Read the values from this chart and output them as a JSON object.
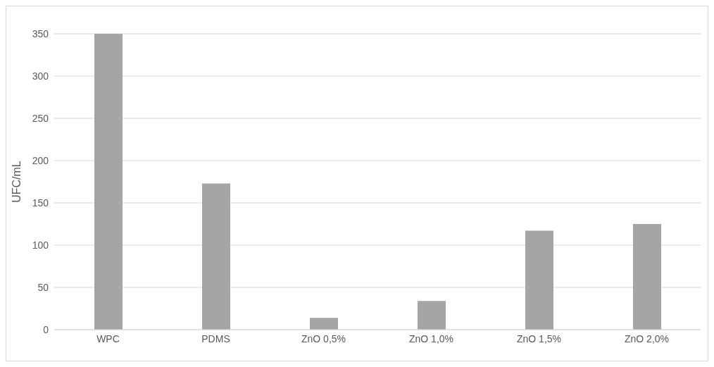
{
  "chart_data": {
    "type": "bar",
    "ylabel": "UFC/mL",
    "categories": [
      "WPC",
      "PDMS",
      "ZnO 0,5%",
      "ZnO 1,0%",
      "ZnO 1,5%",
      "ZnO 2,0%"
    ],
    "values": [
      350,
      173,
      14,
      34,
      117,
      125
    ],
    "color": "#a5a5a5",
    "ylim": [
      0,
      350
    ],
    "yticks": [
      0,
      50,
      100,
      150,
      200,
      250,
      300,
      350
    ],
    "grid": "y"
  }
}
